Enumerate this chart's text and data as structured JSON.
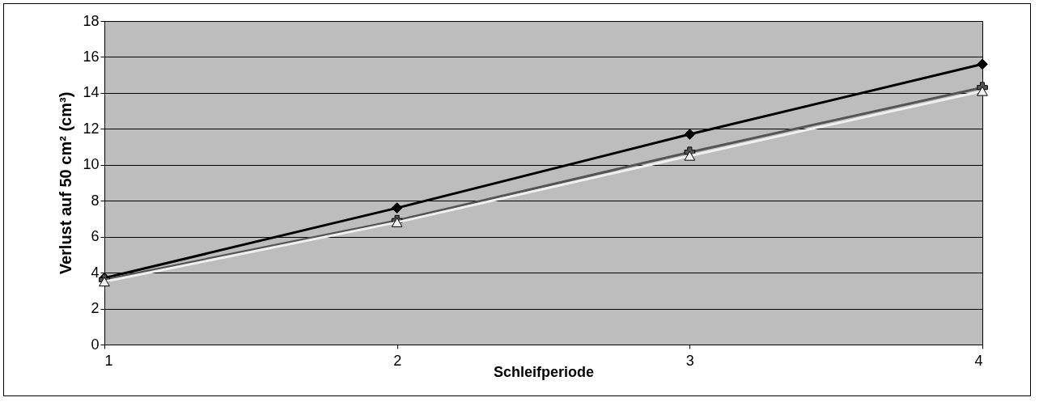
{
  "chart_data": {
    "type": "line",
    "xlabel": "Schleifperiode",
    "ylabel": "Verlust auf 50 cm² (cm³)",
    "x": [
      1,
      2,
      3,
      4
    ],
    "xlim": [
      1,
      4
    ],
    "xticks": [
      1,
      2,
      3,
      4
    ],
    "ylim": [
      0,
      18
    ],
    "yticks": [
      0,
      2,
      4,
      6,
      8,
      10,
      12,
      14,
      16,
      18
    ],
    "grid": "y",
    "series": [
      {
        "color": "#000000",
        "marker": "diamond",
        "values": [
          3.7,
          7.6,
          11.7,
          15.6
        ]
      },
      {
        "color": "#555555",
        "marker": "cross",
        "values": [
          3.6,
          6.9,
          10.7,
          14.3
        ]
      },
      {
        "color": "#f0f0f0",
        "marker": "triangle",
        "values": [
          3.5,
          6.8,
          10.5,
          14.1
        ]
      }
    ]
  }
}
